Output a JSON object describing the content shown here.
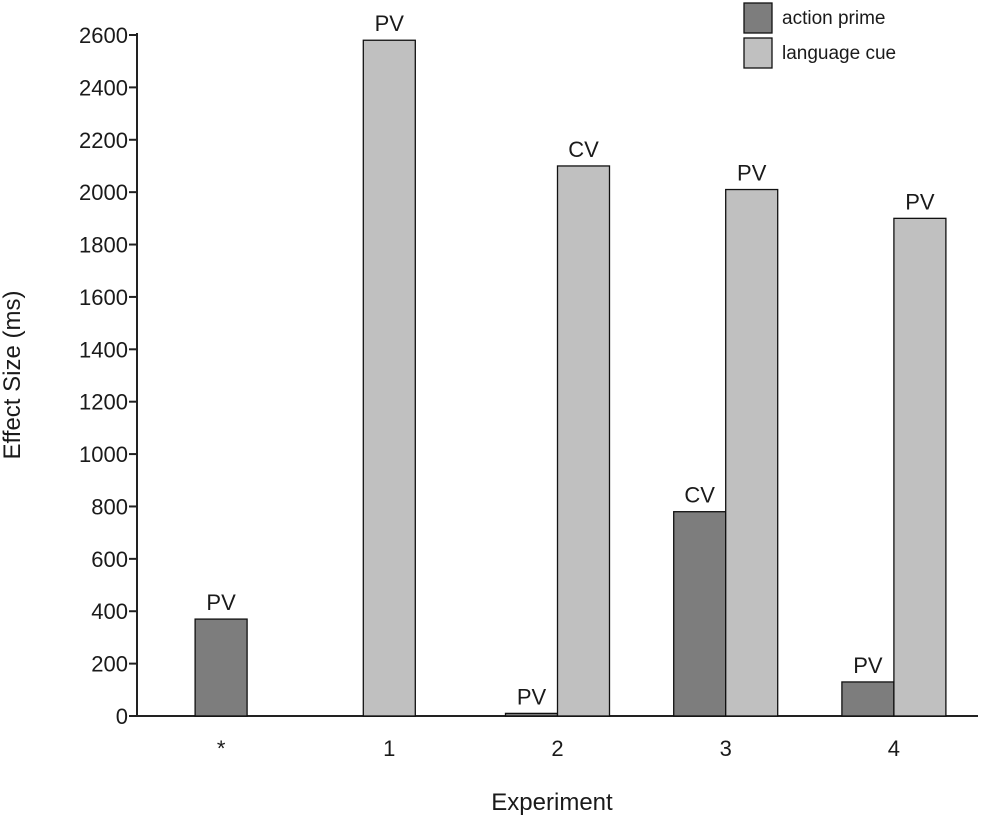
{
  "chart_data": {
    "type": "bar",
    "categories": [
      "*",
      "1",
      "2",
      "3",
      "4"
    ],
    "series": [
      {
        "name": "action prime",
        "color": "#7d7d7d",
        "values": [
          370,
          null,
          10,
          780,
          130
        ],
        "labels": [
          "PV",
          null,
          "PV",
          "CV",
          "PV"
        ]
      },
      {
        "name": "language cue",
        "color": "#c0c0c0",
        "values": [
          null,
          2580,
          2100,
          2010,
          1900
        ],
        "labels": [
          null,
          "PV",
          "CV",
          "PV",
          "PV"
        ]
      }
    ],
    "title": "",
    "xlabel": "Experiment",
    "ylabel": "Effect Size (ms)",
    "ylim": [
      0,
      2600
    ],
    "yticks": [
      0,
      200,
      400,
      600,
      800,
      1000,
      1200,
      1400,
      1600,
      1800,
      2000,
      2200,
      2400,
      2600
    ],
    "legend_position": "top-right",
    "grid": false
  }
}
